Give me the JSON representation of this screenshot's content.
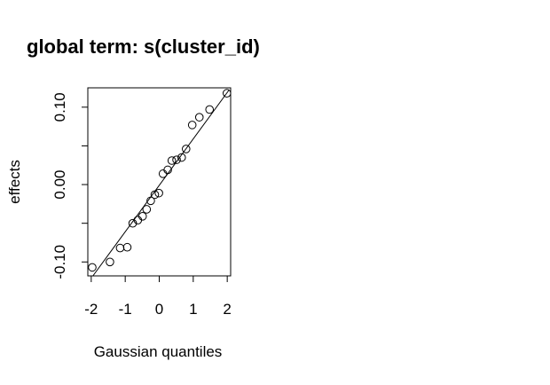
{
  "chart_data": {
    "type": "scatter",
    "title": "global term: s(cluster_id)",
    "xlabel": "Gaussian quantiles",
    "ylabel": "effects",
    "xlim": [
      -2.1,
      2.1
    ],
    "ylim": [
      -0.118,
      0.125
    ],
    "x_ticks": [
      -2,
      -1,
      0,
      1,
      2
    ],
    "x_tick_labels": [
      "-2",
      "-1",
      "0",
      "1",
      "2"
    ],
    "y_ticks": [
      -0.1,
      -0.05,
      0.0,
      0.05,
      0.1
    ],
    "y_tick_labels": [
      "-0.10",
      "",
      "0.00",
      "",
      "0.10"
    ],
    "grid": false,
    "legend": "none",
    "point_style": "open-circle",
    "reference_line": {
      "x": [
        -1.95,
        2.05
      ],
      "y": [
        -0.118,
        0.122
      ]
    },
    "points": {
      "x": [
        -1.97,
        -1.45,
        -1.15,
        -0.94,
        -0.78,
        -0.63,
        -0.49,
        -0.37,
        -0.25,
        -0.13,
        -0.01,
        0.11,
        0.25,
        0.37,
        0.51,
        0.66,
        0.79,
        0.97,
        1.18,
        1.48,
        1.99
      ],
      "y": [
        -0.107,
        -0.1,
        -0.082,
        -0.081,
        -0.05,
        -0.046,
        -0.041,
        -0.032,
        -0.021,
        -0.013,
        -0.011,
        0.014,
        0.019,
        0.031,
        0.032,
        0.035,
        0.046,
        0.077,
        0.087,
        0.097,
        0.118
      ]
    }
  }
}
